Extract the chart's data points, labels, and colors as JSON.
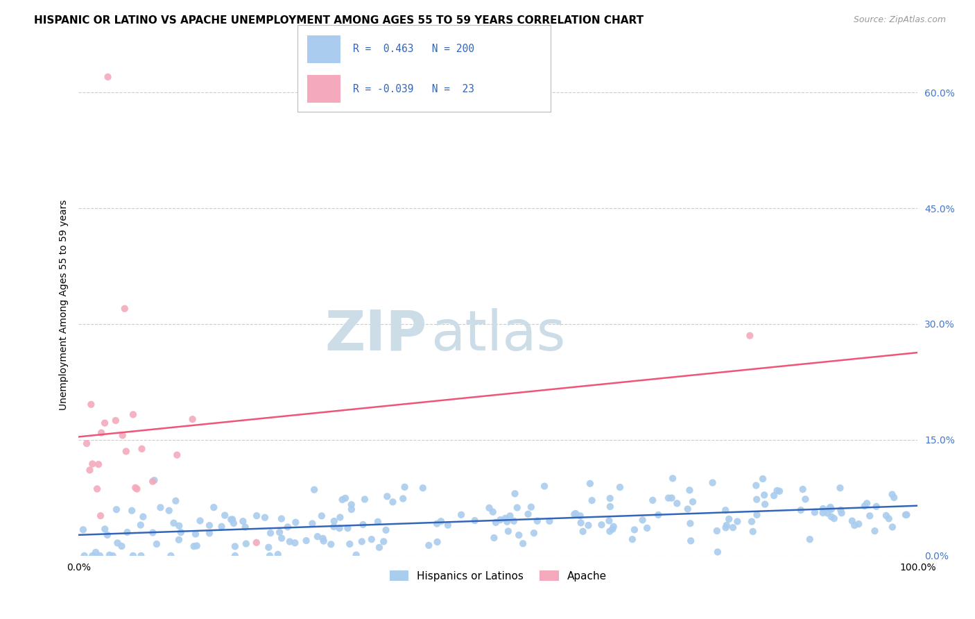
{
  "title": "HISPANIC OR LATINO VS APACHE UNEMPLOYMENT AMONG AGES 55 TO 59 YEARS CORRELATION CHART",
  "source": "Source: ZipAtlas.com",
  "ylabel": "Unemployment Among Ages 55 to 59 years",
  "xlim": [
    0,
    100
  ],
  "ylim": [
    0,
    65
  ],
  "yticks": [
    0,
    15,
    30,
    45,
    60
  ],
  "ytick_labels": [
    "0.0%",
    "15.0%",
    "30.0%",
    "45.0%",
    "60.0%"
  ],
  "xticks": [
    0,
    100
  ],
  "xtick_labels": [
    "0.0%",
    "100.0%"
  ],
  "blue_R": 0.463,
  "blue_N": 200,
  "pink_R": -0.039,
  "pink_N": 23,
  "blue_color": "#aaccee",
  "pink_color": "#f4aabc",
  "blue_line_color": "#3366bb",
  "pink_line_color": "#ee5577",
  "watermark_zip": "ZIP",
  "watermark_atlas": "atlas",
  "watermark_color": "#ccdde8",
  "legend_label_blue": "Hispanics or Latinos",
  "legend_label_pink": "Apache",
  "title_fontsize": 11,
  "source_fontsize": 9,
  "seed": 42
}
